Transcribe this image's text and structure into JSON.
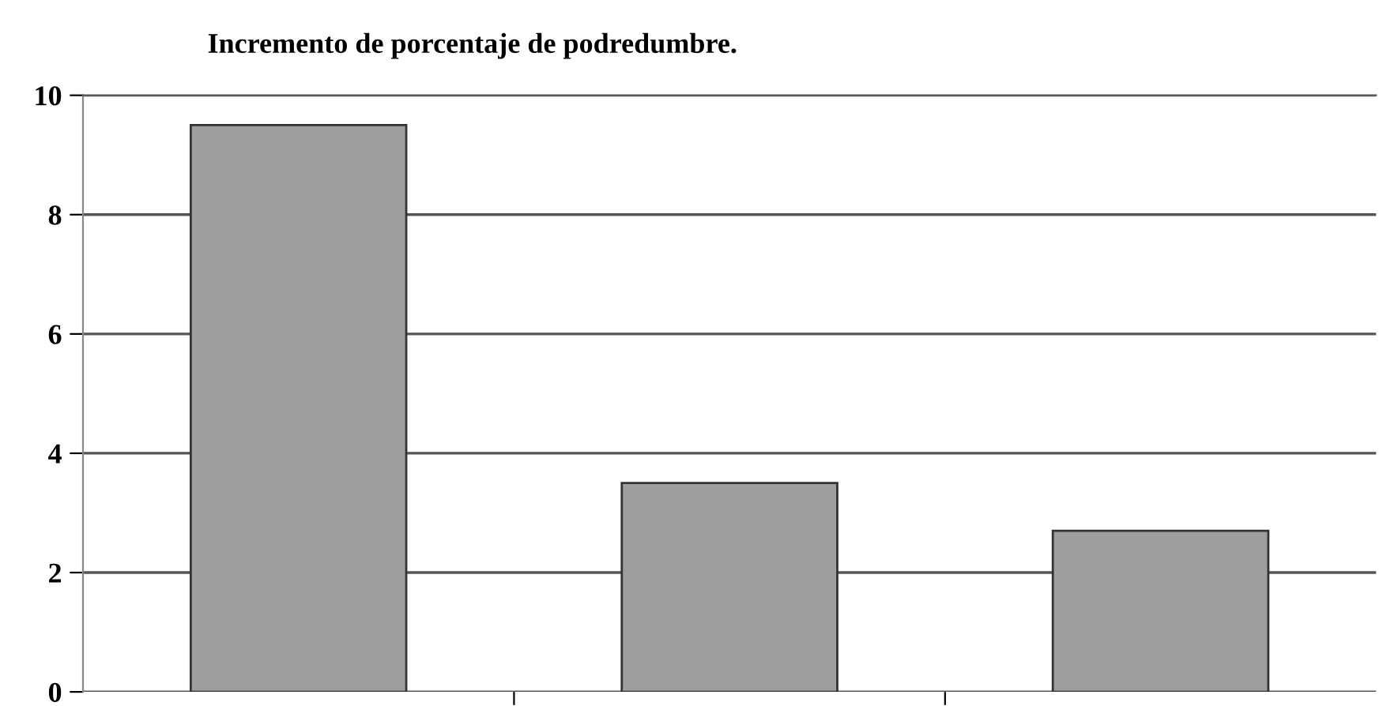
{
  "chart_data": {
    "type": "bar",
    "title": "Incremento de porcentaje de podredumbre.",
    "categories": [
      null,
      null,
      null
    ],
    "values": [
      9.5,
      3.5,
      2.7
    ],
    "color": "#9e9e9e",
    "ylim": [
      0,
      10
    ],
    "yticks": [
      0,
      2,
      4,
      6,
      8,
      10
    ],
    "grid": "y",
    "tick_labels": "y"
  }
}
